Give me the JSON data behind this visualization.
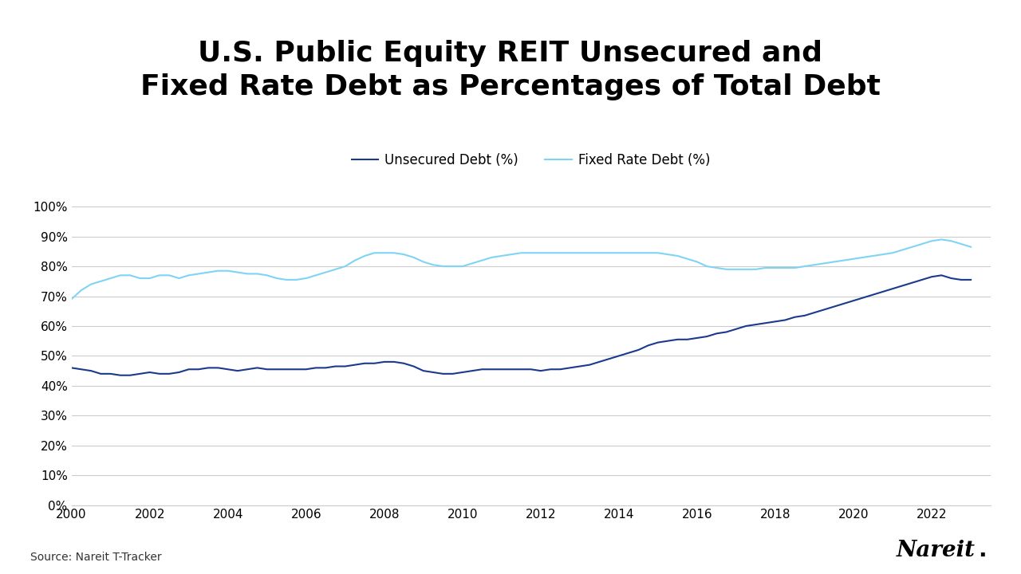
{
  "title": "U.S. Public Equity REIT Unsecured and\nFixed Rate Debt as Percentages of Total Debt",
  "source": "Source: Nareit T-Tracker",
  "legend_labels": [
    "Unsecured Debt (%)",
    "Fixed Rate Debt (%)"
  ],
  "unsecured_color": "#1a3a8c",
  "fixed_color": "#7fd4f5",
  "background_color": "#ffffff",
  "xlim": [
    2000,
    2023.5
  ],
  "ylim": [
    0,
    1.0
  ],
  "yticks": [
    0.0,
    0.1,
    0.2,
    0.3,
    0.4,
    0.5,
    0.6,
    0.7,
    0.8,
    0.9,
    1.0
  ],
  "xticks": [
    2000,
    2002,
    2004,
    2006,
    2008,
    2010,
    2012,
    2014,
    2016,
    2018,
    2020,
    2022
  ],
  "years": [
    2000.0,
    2000.25,
    2000.5,
    2000.75,
    2001.0,
    2001.25,
    2001.5,
    2001.75,
    2002.0,
    2002.25,
    2002.5,
    2002.75,
    2003.0,
    2003.25,
    2003.5,
    2003.75,
    2004.0,
    2004.25,
    2004.5,
    2004.75,
    2005.0,
    2005.25,
    2005.5,
    2005.75,
    2006.0,
    2006.25,
    2006.5,
    2006.75,
    2007.0,
    2007.25,
    2007.5,
    2007.75,
    2008.0,
    2008.25,
    2008.5,
    2008.75,
    2009.0,
    2009.25,
    2009.5,
    2009.75,
    2010.0,
    2010.25,
    2010.5,
    2010.75,
    2011.0,
    2011.25,
    2011.5,
    2011.75,
    2012.0,
    2012.25,
    2012.5,
    2012.75,
    2013.0,
    2013.25,
    2013.5,
    2013.75,
    2014.0,
    2014.25,
    2014.5,
    2014.75,
    2015.0,
    2015.25,
    2015.5,
    2015.75,
    2016.0,
    2016.25,
    2016.5,
    2016.75,
    2017.0,
    2017.25,
    2017.5,
    2017.75,
    2018.0,
    2018.25,
    2018.5,
    2018.75,
    2019.0,
    2019.25,
    2019.5,
    2019.75,
    2020.0,
    2020.25,
    2020.5,
    2020.75,
    2021.0,
    2021.25,
    2021.5,
    2021.75,
    2022.0,
    2022.25,
    2022.5,
    2022.75,
    2023.0
  ],
  "unsecured": [
    0.46,
    0.455,
    0.45,
    0.44,
    0.44,
    0.435,
    0.435,
    0.44,
    0.445,
    0.44,
    0.44,
    0.445,
    0.455,
    0.455,
    0.46,
    0.46,
    0.455,
    0.45,
    0.455,
    0.46,
    0.455,
    0.455,
    0.455,
    0.455,
    0.455,
    0.46,
    0.46,
    0.465,
    0.465,
    0.47,
    0.475,
    0.475,
    0.48,
    0.48,
    0.475,
    0.465,
    0.45,
    0.445,
    0.44,
    0.44,
    0.445,
    0.45,
    0.455,
    0.455,
    0.455,
    0.455,
    0.455,
    0.455,
    0.45,
    0.455,
    0.455,
    0.46,
    0.465,
    0.47,
    0.48,
    0.49,
    0.5,
    0.51,
    0.52,
    0.535,
    0.545,
    0.55,
    0.555,
    0.555,
    0.56,
    0.565,
    0.575,
    0.58,
    0.59,
    0.6,
    0.605,
    0.61,
    0.615,
    0.62,
    0.63,
    0.635,
    0.645,
    0.655,
    0.665,
    0.675,
    0.685,
    0.695,
    0.705,
    0.715,
    0.725,
    0.735,
    0.745,
    0.755,
    0.765,
    0.77,
    0.76,
    0.755,
    0.755
  ],
  "fixed_rate": [
    0.69,
    0.72,
    0.74,
    0.75,
    0.76,
    0.77,
    0.77,
    0.76,
    0.76,
    0.77,
    0.77,
    0.76,
    0.77,
    0.775,
    0.78,
    0.785,
    0.785,
    0.78,
    0.775,
    0.775,
    0.77,
    0.76,
    0.755,
    0.755,
    0.76,
    0.77,
    0.78,
    0.79,
    0.8,
    0.82,
    0.835,
    0.845,
    0.845,
    0.845,
    0.84,
    0.83,
    0.815,
    0.805,
    0.8,
    0.8,
    0.8,
    0.81,
    0.82,
    0.83,
    0.835,
    0.84,
    0.845,
    0.845,
    0.845,
    0.845,
    0.845,
    0.845,
    0.845,
    0.845,
    0.845,
    0.845,
    0.845,
    0.845,
    0.845,
    0.845,
    0.845,
    0.84,
    0.835,
    0.825,
    0.815,
    0.8,
    0.795,
    0.79,
    0.79,
    0.79,
    0.79,
    0.795,
    0.795,
    0.795,
    0.795,
    0.8,
    0.805,
    0.81,
    0.815,
    0.82,
    0.825,
    0.83,
    0.835,
    0.84,
    0.845,
    0.855,
    0.865,
    0.875,
    0.885,
    0.89,
    0.885,
    0.875,
    0.865
  ]
}
